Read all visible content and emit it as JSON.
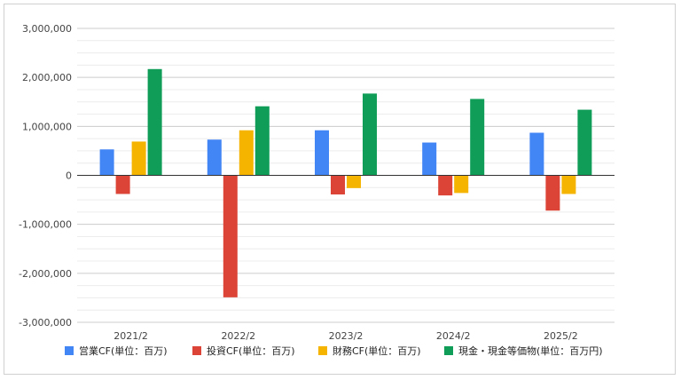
{
  "chart_data": {
    "type": "bar",
    "title": "",
    "xlabel": "",
    "ylabel": "",
    "categories": [
      "2021/2",
      "2022/2",
      "2023/2",
      "2024/2",
      "2025/2"
    ],
    "ylim": [
      -3000000,
      3000000
    ],
    "major_ticks": [
      3000000,
      2000000,
      1000000,
      0,
      -1000000,
      -2000000,
      -3000000
    ],
    "tick_labels": [
      "3,000,000",
      "2,000,000",
      "1,000,000",
      "0",
      "-1,000,000",
      "-2,000,000",
      "-3,000,000"
    ],
    "grid": true,
    "legend_position": "bottom",
    "series": [
      {
        "name": "営業CF(単位：百万)",
        "color": "#4285f4",
        "values": [
          530000,
          730000,
          920000,
          670000,
          870000
        ]
      },
      {
        "name": "投資CF(単位：百万)",
        "color": "#db4437",
        "values": [
          -380000,
          -2490000,
          -390000,
          -410000,
          -720000
        ]
      },
      {
        "name": "財務CF(単位：百万)",
        "color": "#f4b400",
        "values": [
          690000,
          920000,
          -260000,
          -360000,
          -380000
        ]
      },
      {
        "name": "現金・現金等価物(単位：百万円)",
        "color": "#0f9d58",
        "values": [
          2170000,
          1410000,
          1670000,
          1560000,
          1340000
        ]
      }
    ]
  }
}
